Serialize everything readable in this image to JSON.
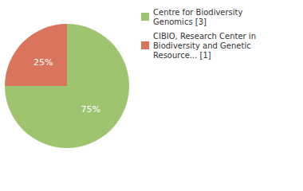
{
  "chart_data": {
    "type": "pie",
    "categories": [
      "Centre for Biodiversity Genomics [3]",
      "CIBIO, Research Center in Biodiversity and Genetic Resource... [1]"
    ],
    "values": [
      75,
      25
    ],
    "value_labels": [
      "75%",
      "25%"
    ],
    "colors": [
      "#9fc46f",
      "#d9755d"
    ],
    "data_labels": true,
    "legend": "top-right"
  }
}
